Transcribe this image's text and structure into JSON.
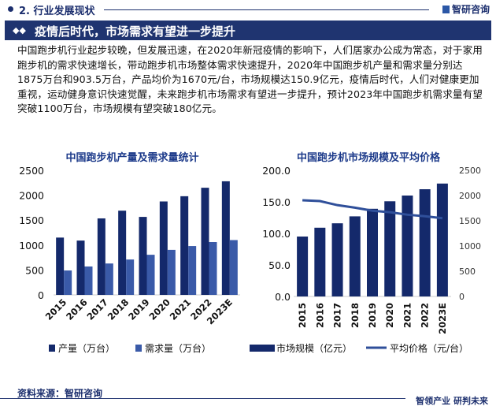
{
  "header": {
    "section": "2. 行业发展现状",
    "brand": "智研咨询"
  },
  "banner": {
    "title": "疫情后时代，市场需求有望进一步提升"
  },
  "paragraph": "中国跑步机行业起步较晚，但发展迅速，在2020年新冠疫情的影响下，人们居家办公成为常态，对于家用跑步机的需求快速增长，带动跑步机市场整体需求快速提升，2020年中国跑步机产量和需求量分别达1875万台和903.5万台，产品均价为1670元/台，市场规模达150.9亿元，疫情后时代，人们对健康更加重视，运动健身意识快速觉醒，未来跑步机市场需求有望进一步提升，预计2023年中国跑步机需求量有望突破1100万台，市场规模有望突破180亿元。",
  "footer": {
    "source": "资料来源：智研咨询",
    "slogan": "智领产业 研判未来"
  },
  "colors": {
    "navy": "#14296b",
    "blue": "#3a5aa8",
    "line": "#2f4f9a"
  },
  "chart_data": [
    {
      "type": "bar",
      "title": "中国跑步机产量及需求量统计",
      "categories": [
        "2015",
        "2016",
        "2017",
        "2018",
        "2019",
        "2020",
        "2021",
        "2022",
        "2023E"
      ],
      "ylim": [
        0,
        2500
      ],
      "yticks": [
        "0",
        "500",
        "1000",
        "1500",
        "2000",
        "2500"
      ],
      "grid": false,
      "legend": "bottom",
      "series": [
        {
          "name": "产量（万台）",
          "values": [
            1150,
            1090,
            1535,
            1690,
            1565,
            1875,
            1980,
            2150,
            2280
          ]
        },
        {
          "name": "需求量（万台）",
          "values": [
            490,
            570,
            630,
            710,
            805,
            903.5,
            980,
            1060,
            1100
          ]
        }
      ]
    },
    {
      "type": "bar+line",
      "title": "中国跑步机市场规模及平均价格",
      "categories": [
        "2015",
        "2016",
        "2017",
        "2018",
        "2019",
        "2020",
        "2021",
        "2022",
        "2023E"
      ],
      "ylim": [
        0,
        200
      ],
      "yticks": [
        "0.0",
        "50.0",
        "100.0",
        "150.0",
        "200.0"
      ],
      "y2lim": [
        0,
        2500
      ],
      "y2ticks": [
        "0",
        "500",
        "1000",
        "1500",
        "2000",
        "2500"
      ],
      "grid": false,
      "legend": "bottom",
      "series": [
        {
          "name": "市场规模（亿元）",
          "type": "bar",
          "axis": "left",
          "values": [
            95,
            109,
            116,
            127,
            139,
            150.9,
            160,
            170,
            179
          ]
        },
        {
          "name": "平均价格（元/台）",
          "type": "line",
          "axis": "right",
          "values": [
            1906,
            1890,
            1810,
            1760,
            1700,
            1670,
            1620,
            1590,
            1550
          ]
        }
      ]
    }
  ]
}
